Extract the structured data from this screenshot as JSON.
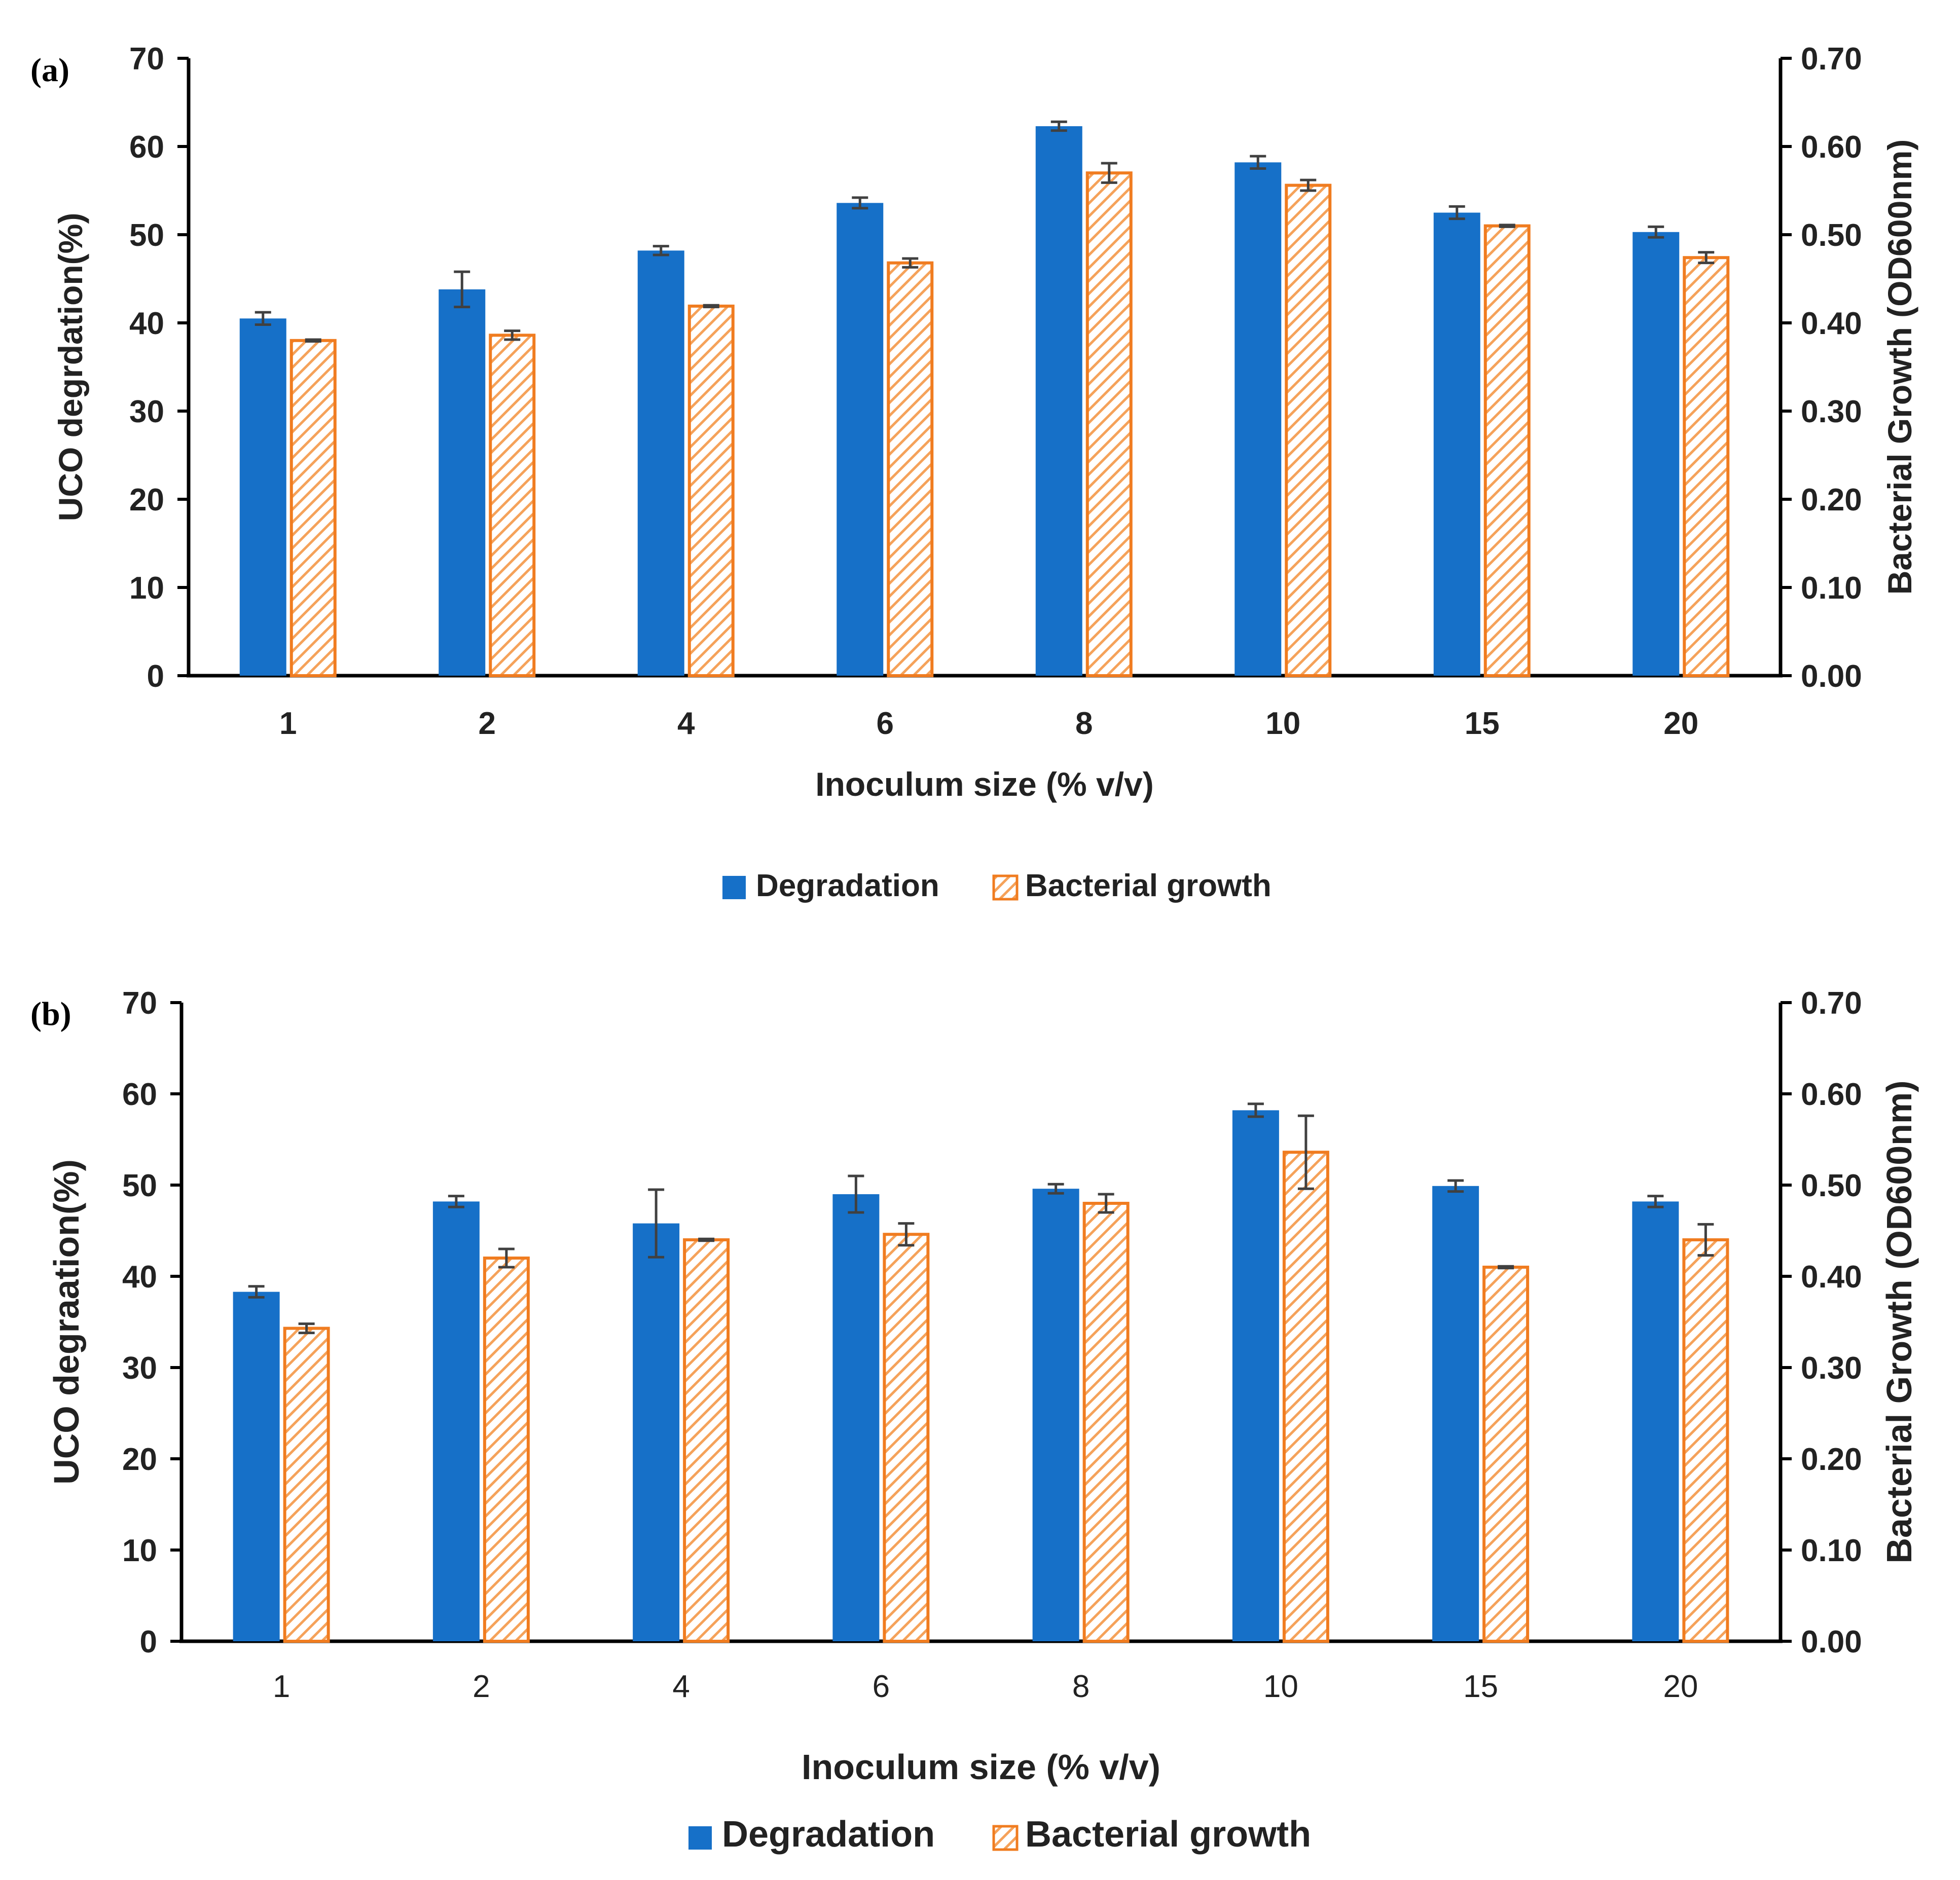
{
  "colors": {
    "degradation": "#1670C8",
    "growth_stroke": "#F07C20",
    "growth_hatch": "#F5A25A",
    "axis": "#000000",
    "errorbar": "#404040",
    "text": "#222222"
  },
  "chart_data": [
    {
      "type": "bar",
      "panel_label": "(a)",
      "categories": [
        "1",
        "2",
        "4",
        "6",
        "8",
        "10",
        "15",
        "20"
      ],
      "xlabel": "Inoculum size (% v/v)",
      "ylabel": "UCO degrdation(%)",
      "y2label": "Bacterial Growth (OD600nm)",
      "ylim": [
        0,
        70
      ],
      "y2lim": [
        0,
        0.7
      ],
      "yticks": [
        "0",
        "10",
        "20",
        "30",
        "40",
        "50",
        "60",
        "70"
      ],
      "y2ticks": [
        "0.00",
        "0.10",
        "0.20",
        "0.30",
        "0.40",
        "0.50",
        "0.60",
        "0.70"
      ],
      "grid": false,
      "legend_position": "bottom-center",
      "series": [
        {
          "name": "Degradation",
          "axis": "left",
          "style": "solid",
          "values": [
            40.5,
            43.8,
            48.2,
            53.6,
            62.3,
            58.2,
            52.5,
            50.3
          ],
          "errors": [
            0.7,
            2.0,
            0.5,
            0.6,
            0.5,
            0.7,
            0.7,
            0.6
          ]
        },
        {
          "name": "Bacterial growth",
          "axis": "right",
          "style": "hatched",
          "values": [
            0.38,
            0.386,
            0.419,
            0.468,
            0.57,
            0.556,
            0.51,
            0.474
          ],
          "errors": [
            0.001,
            0.005,
            0.001,
            0.005,
            0.011,
            0.006,
            0.001,
            0.006
          ]
        }
      ]
    },
    {
      "type": "bar",
      "panel_label": "(b)",
      "categories": [
        "1",
        "2",
        "4",
        "6",
        "8",
        "10",
        "15",
        "20"
      ],
      "xlabel": "Inoculum size (% v/v)",
      "ylabel": "UCO degraation(%)",
      "y2label": "Bacterial Growth (OD600nm)",
      "ylim": [
        0,
        70
      ],
      "y2lim": [
        0,
        0.7
      ],
      "yticks": [
        "0",
        "10",
        "20",
        "30",
        "40",
        "50",
        "60",
        "70"
      ],
      "y2ticks": [
        "0.00",
        "0.10",
        "0.20",
        "0.30",
        "0.40",
        "0.50",
        "0.60",
        "0.70"
      ],
      "grid": false,
      "legend_position": "bottom-center",
      "series": [
        {
          "name": "Degradation",
          "axis": "left",
          "style": "solid",
          "values": [
            38.3,
            48.2,
            45.8,
            49.0,
            49.6,
            58.2,
            49.9,
            48.2
          ],
          "errors": [
            0.6,
            0.6,
            3.7,
            2.0,
            0.5,
            0.7,
            0.6,
            0.6
          ]
        },
        {
          "name": "Bacterial growth",
          "axis": "right",
          "style": "hatched",
          "values": [
            0.343,
            0.42,
            0.44,
            0.446,
            0.48,
            0.536,
            0.41,
            0.44
          ],
          "errors": [
            0.005,
            0.01,
            0.001,
            0.012,
            0.01,
            0.04,
            0.001,
            0.017
          ]
        }
      ]
    }
  ]
}
